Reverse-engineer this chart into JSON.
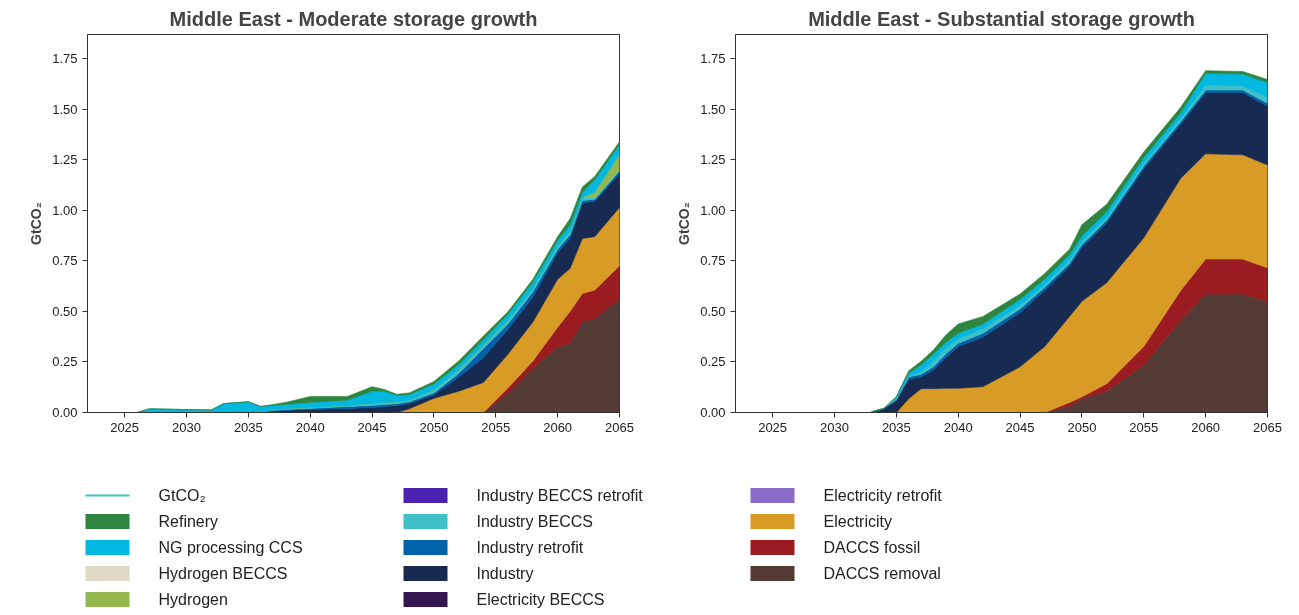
{
  "chart_data": [
    {
      "type": "area",
      "stacked": true,
      "title": "Middle East - Moderate storage growth",
      "ylabel": "GtCO₂",
      "legend": "bottom",
      "grid": false,
      "x": [
        2026,
        2027,
        2032,
        2033,
        2035,
        2036,
        2038,
        2040,
        2043,
        2045,
        2046,
        2047,
        2048,
        2050,
        2052,
        2054,
        2056,
        2058,
        2060,
        2061,
        2062,
        2063,
        2065
      ],
      "xlim": [
        2022,
        2065
      ],
      "ylim": [
        0,
        1.87
      ],
      "xticks": [
        2025,
        2030,
        2035,
        2040,
        2045,
        2050,
        2055,
        2060,
        2065
      ],
      "yticks": [
        {
          "value": 0,
          "label": "0.00"
        },
        {
          "value": 0.25,
          "label": "0.25"
        },
        {
          "value": 0.5,
          "label": "0.50"
        },
        {
          "value": 0.75,
          "label": "0.75"
        },
        {
          "value": 1,
          "label": "1.00"
        },
        {
          "value": 1.25,
          "label": "1.25"
        },
        {
          "value": 1.5,
          "label": "1.50"
        },
        {
          "value": 1.75,
          "label": "1.75"
        }
      ],
      "series": [
        {
          "name": "DACCS removal",
          "color": "#553b35",
          "values": [
            0,
            0,
            0,
            0,
            0,
            0,
            0,
            0,
            0,
            0,
            0,
            0,
            0,
            0,
            0,
            0,
            0.097,
            0.22,
            0.325,
            0.343,
            0.448,
            0.466,
            0.562
          ]
        },
        {
          "name": "DACCS fossil",
          "color": "#9b1c20",
          "values": [
            0,
            0,
            0,
            0,
            0,
            0,
            0,
            0,
            0,
            0,
            0,
            0,
            0,
            0,
            0,
            0,
            0.026,
            0.035,
            0.097,
            0.157,
            0.141,
            0.14,
            0.164
          ]
        },
        {
          "name": "Electricity",
          "color": "#d89b25",
          "values": [
            0,
            0,
            0,
            0,
            0,
            0,
            0,
            0,
            0,
            0,
            0,
            0,
            0.018,
            0.07,
            0.105,
            0.149,
            0.167,
            0.193,
            0.237,
            0.212,
            0.272,
            0.264,
            0.288
          ]
        },
        {
          "name": "Electricity retrofit",
          "color": "#8c6bc8",
          "values": [
            null,
            null,
            null,
            null,
            null,
            null,
            null,
            null,
            null,
            null,
            null,
            null,
            null,
            null,
            null,
            null,
            null,
            null,
            null,
            null,
            null,
            null,
            null
          ]
        },
        {
          "name": "Electricity BECCS",
          "color": "#341650",
          "values": [
            null,
            null,
            null,
            null,
            null,
            null,
            null,
            null,
            null,
            null,
            null,
            null,
            null,
            null,
            null,
            null,
            null,
            null,
            null,
            null,
            null,
            null,
            null
          ]
        },
        {
          "name": "Industry",
          "color": "#172a52",
          "values": [
            0,
            0,
            0,
            0,
            0,
            0.005,
            0.01,
            0.015,
            0.02,
            0.025,
            0.03,
            0.035,
            0.026,
            0.018,
            0.071,
            0.123,
            0.123,
            0.123,
            0.132,
            0.149,
            0.176,
            0.175,
            0.168
          ]
        },
        {
          "name": "Industry retrofit",
          "color": "#0062a8",
          "values": [
            0,
            0,
            0,
            0,
            0,
            0,
            0.005,
            0.005,
            0.01,
            0.01,
            0.01,
            0.008,
            0.009,
            0.009,
            0.017,
            0.044,
            0.026,
            0.026,
            0.017,
            0.018,
            0.012,
            0.009,
            0.013
          ]
        },
        {
          "name": "Industry BECCS",
          "color": "#3fc0c6",
          "values": [
            0,
            0,
            0,
            0,
            0,
            0,
            0.005,
            0.005,
            0.005,
            0.01,
            0.01,
            0.01,
            0.008,
            0.017,
            0.018,
            0.018,
            0.018,
            0.018,
            0.018,
            0.017,
            0.014,
            0.009,
            0.005
          ]
        },
        {
          "name": "Industry BECCS retrofit",
          "color": "#4b22b0",
          "values": [
            null,
            null,
            null,
            null,
            null,
            null,
            null,
            null,
            null,
            null,
            null,
            null,
            null,
            null,
            null,
            null,
            null,
            null,
            null,
            null,
            null,
            null,
            null
          ]
        },
        {
          "name": "Hydrogen",
          "color": "#94b84f",
          "values": [
            0,
            0,
            0,
            0,
            0,
            0,
            0,
            0,
            0,
            0,
            0,
            0,
            0,
            0,
            0,
            0,
            0,
            0,
            0,
            0,
            0,
            0.026,
            0.077
          ]
        },
        {
          "name": "Hydrogen BECCS",
          "color": "#e0d9c6",
          "values": [
            null,
            null,
            null,
            null,
            null,
            null,
            null,
            null,
            null,
            null,
            null,
            null,
            null,
            null,
            null,
            null,
            null,
            null,
            null,
            null,
            null,
            null,
            null
          ]
        },
        {
          "name": "NG processing CCS",
          "color": "#00b8e0",
          "values": [
            0,
            0.018,
            0.012,
            0.044,
            0.053,
            0.025,
            0.02,
            0.025,
            0.026,
            0.06,
            0.055,
            0.032,
            0.027,
            0.027,
            0.026,
            0.026,
            0.03,
            0.03,
            0.026,
            0.03,
            0.026,
            0.062,
            0.049
          ]
        },
        {
          "name": "Refinery",
          "color": "#2e8540",
          "values": [
            0,
            0,
            0,
            0,
            0,
            0,
            0.01,
            0.029,
            0.018,
            0.023,
            0.009,
            0.005,
            0.009,
            0.012,
            0.018,
            0.018,
            0.013,
            0.014,
            0.018,
            0.032,
            0.027,
            0.017,
            0.014
          ]
        },
        {
          "name": "GtCO₂",
          "type": "line",
          "color": "#3bbfc9",
          "values": [
            null,
            null,
            null,
            null,
            null,
            null,
            null,
            null,
            null,
            null,
            null,
            null,
            null,
            null,
            null,
            null,
            null,
            null,
            null,
            null,
            null,
            null,
            null
          ]
        }
      ]
    },
    {
      "type": "area",
      "stacked": true,
      "title": "Middle East - Substantial storage growth",
      "ylabel": "GtCO₂",
      "grid": false,
      "x": [
        2033,
        2034,
        2035,
        2036,
        2037,
        2038,
        2039,
        2040,
        2042,
        2045,
        2047,
        2049,
        2050,
        2052,
        2055,
        2058,
        2060,
        2063,
        2065
      ],
      "xlim": [
        2022,
        2065
      ],
      "ylim": [
        0,
        1.87
      ],
      "xticks": [
        2025,
        2030,
        2035,
        2040,
        2045,
        2050,
        2055,
        2060,
        2065
      ],
      "yticks": [
        {
          "value": 0,
          "label": "0.00"
        },
        {
          "value": 0.25,
          "label": "0.25"
        },
        {
          "value": 0.5,
          "label": "0.50"
        },
        {
          "value": 0.75,
          "label": "0.75"
        },
        {
          "value": 1,
          "label": "1.00"
        },
        {
          "value": 1.25,
          "label": "1.25"
        },
        {
          "value": 1.5,
          "label": "1.50"
        },
        {
          "value": 1.75,
          "label": "1.75"
        }
      ],
      "series": [
        {
          "color": "#553b35",
          "values": [
            0,
            0,
            0,
            0,
            0,
            0,
            0,
            0,
            0,
            0,
            0,
            0.031,
            0.068,
            0.105,
            0.235,
            0.457,
            0.586,
            0.586,
            0.549
          ]
        },
        {
          "color": "#9b1c20",
          "values": [
            0,
            0,
            0,
            0,
            0,
            0,
            0,
            0,
            0,
            0,
            0,
            0.019,
            0.01,
            0.037,
            0.092,
            0.148,
            0.173,
            0.173,
            0.167
          ]
        },
        {
          "color": "#d89b25",
          "values": [
            0,
            0,
            0,
            0.068,
            0.118,
            0.118,
            0.12,
            0.12,
            0.128,
            0.226,
            0.327,
            0.425,
            0.472,
            0.5,
            0.537,
            0.555,
            0.521,
            0.516,
            0.509
          ]
        },
        {
          "color": "#172a52",
          "values": [
            0.003,
            0.02,
            0.059,
            0.097,
            0.058,
            0.093,
            0.152,
            0.207,
            0.246,
            0.268,
            0.278,
            0.25,
            0.268,
            0.296,
            0.342,
            0.268,
            0.303,
            0.308,
            0.29
          ]
        },
        {
          "color": "#0062a8",
          "values": [
            0,
            0,
            0.005,
            0.011,
            0.013,
            0.015,
            0.018,
            0.015,
            0.018,
            0.018,
            0.015,
            0.013,
            0.013,
            0.013,
            0.013,
            0.013,
            0.012,
            0.012,
            0.015
          ]
        },
        {
          "color": "#3fc0c6",
          "values": [
            0,
            0,
            0.005,
            0.003,
            0.013,
            0.027,
            0.028,
            0.022,
            0.022,
            0.018,
            0.013,
            0.015,
            0.015,
            0.015,
            0.015,
            0.015,
            0.024,
            0.022,
            0.028
          ]
        },
        {
          "color": "#00b8e0",
          "values": [
            0,
            0,
            0.009,
            0.015,
            0.033,
            0.037,
            0.028,
            0.028,
            0.024,
            0.029,
            0.027,
            0.027,
            0.027,
            0.027,
            0.028,
            0.028,
            0.059,
            0.057,
            0.074
          ]
        },
        {
          "color": "#2e8540",
          "values": [
            0,
            0,
            0,
            0.013,
            0.018,
            0.019,
            0.037,
            0.046,
            0.037,
            0.027,
            0.028,
            0.028,
            0.056,
            0.037,
            0.027,
            0.027,
            0.013,
            0.013,
            0.015
          ]
        }
      ]
    }
  ]
}
